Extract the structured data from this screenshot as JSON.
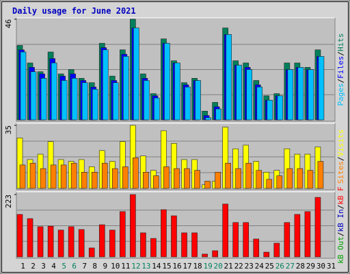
{
  "chart_data": [
    {
      "type": "bar",
      "title": "Daily usage for June 2021",
      "ylim": [
        0,
        46
      ],
      "yticks": [
        46
      ],
      "legend_separator": "/",
      "series": [
        {
          "name": "Hits",
          "color": "#00805c",
          "values": [
            34,
            26,
            22,
            31,
            21,
            23,
            19,
            17,
            35,
            20,
            32,
            46,
            21,
            12,
            37,
            27,
            17,
            19,
            4,
            8,
            42,
            27,
            26,
            18,
            11,
            12,
            26,
            26,
            24,
            32,
            0
          ]
        },
        {
          "name": "Files",
          "color": "#0000ff",
          "values": [
            32,
            24,
            21,
            28,
            20,
            21,
            18,
            15,
            33,
            18,
            30,
            42,
            19,
            11,
            35,
            26,
            16,
            18,
            2,
            6,
            39,
            25,
            24,
            16,
            9,
            11,
            23,
            24,
            23,
            29,
            0
          ]
        },
        {
          "name": "Pages",
          "color": "#00c0ff",
          "values": [
            31,
            22,
            19,
            26,
            18,
            19,
            17,
            14,
            32,
            17,
            29,
            42,
            18,
            10,
            35,
            26,
            15,
            18,
            1,
            5,
            39,
            25,
            23,
            15,
            9,
            11,
            23,
            24,
            23,
            29,
            0
          ]
        }
      ]
    },
    {
      "type": "bar",
      "ylim": [
        0,
        35
      ],
      "yticks": [
        35
      ],
      "legend_separator": "/",
      "series": [
        {
          "name": "Visits",
          "color": "#ffff00",
          "values": [
            28,
            16,
            19,
            26,
            16,
            15,
            16,
            12,
            21,
            15,
            26,
            35,
            18,
            10,
            32,
            25,
            16,
            16,
            2,
            4,
            34,
            22,
            24,
            15,
            9,
            10,
            22,
            19,
            19,
            23,
            0
          ]
        },
        {
          "name": "Sites",
          "color": "#ff8000",
          "values": [
            13,
            14,
            11,
            13,
            13,
            14,
            9,
            9,
            14,
            11,
            12,
            17,
            9,
            7,
            12,
            11,
            11,
            10,
            4,
            9,
            14,
            11,
            14,
            10,
            5,
            7,
            11,
            11,
            10,
            15,
            0
          ]
        }
      ]
    },
    {
      "type": "bar",
      "ylim": [
        0,
        223
      ],
      "yticks": [
        223
      ],
      "legend_separator": "/",
      "categories": [
        "1",
        "2",
        "3",
        "4",
        "5",
        "6",
        "7",
        "8",
        "9",
        "10",
        "11",
        "12",
        "13",
        "14",
        "15",
        "16",
        "17",
        "18",
        "19",
        "20",
        "21",
        "22",
        "23",
        "24",
        "25",
        "26",
        "27",
        "28",
        "29",
        "30",
        "31"
      ],
      "category_colors": [
        "#000",
        "#000",
        "#000",
        "#000",
        "#00805c",
        "#00805c",
        "#000",
        "#000",
        "#000",
        "#000",
        "#000",
        "#00805c",
        "#00805c",
        "#000",
        "#000",
        "#000",
        "#000",
        "#000",
        "#00805c",
        "#00805c",
        "#000",
        "#000",
        "#000",
        "#000",
        "#000",
        "#00805c",
        "#00805c",
        "#000",
        "#000",
        "#000",
        "#000"
      ],
      "series": [
        {
          "name": "kB F",
          "color": "#ff0000",
          "values": [
            152,
            137,
            108,
            110,
            96,
            108,
            98,
            32,
            115,
            96,
            162,
            223,
            86,
            66,
            169,
            147,
            86,
            86,
            10,
            22,
            189,
            123,
            123,
            64,
            17,
            49,
            123,
            152,
            162,
            213,
            0
          ]
        },
        {
          "name": "kB In",
          "color": "#0000c0",
          "values": [
            0,
            0,
            0,
            0,
            0,
            0,
            0,
            0,
            0,
            0,
            0,
            0,
            0,
            0,
            0,
            0,
            0,
            0,
            0,
            0,
            0,
            0,
            0,
            0,
            0,
            0,
            0,
            0,
            0,
            0,
            0
          ]
        },
        {
          "name": "kB Out",
          "color": "#00a000",
          "values": [
            0,
            0,
            0,
            0,
            0,
            0,
            0,
            0,
            0,
            0,
            0,
            0,
            0,
            0,
            0,
            0,
            0,
            0,
            0,
            0,
            0,
            0,
            0,
            0,
            0,
            0,
            0,
            0,
            0,
            0,
            0
          ]
        }
      ]
    }
  ]
}
